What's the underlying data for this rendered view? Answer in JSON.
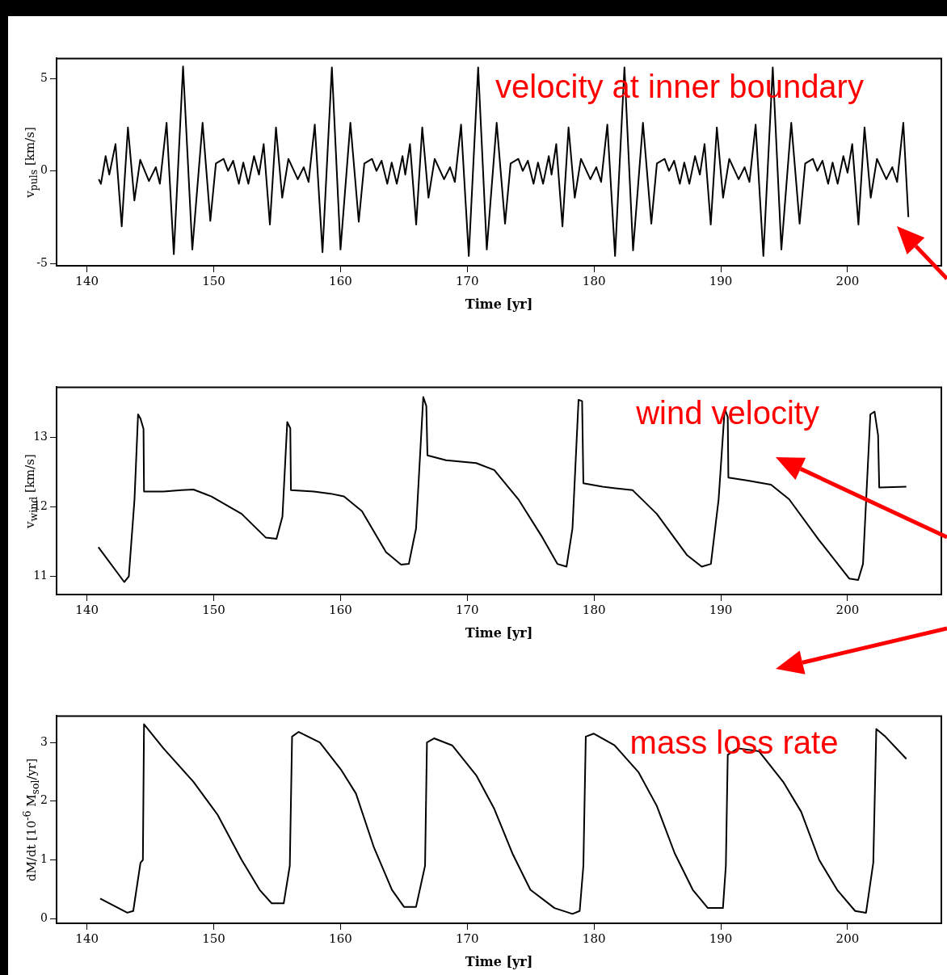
{
  "chart_data": [
    {
      "type": "line",
      "color": "#000000",
      "xlabel": "Time [yr]",
      "ylabel": "v$_{puls}$ [km/s]",
      "annotations": [
        "velocity at inner boundary"
      ],
      "xlim": [
        137.6,
        207.4
      ],
      "xticks": [
        140,
        150,
        160,
        170,
        180,
        190,
        200
      ],
      "ylim": [
        -5.13,
        6.08
      ],
      "yticks": [
        -5,
        0,
        5
      ],
      "x": [
        140.93,
        141.1,
        141.47,
        141.76,
        142.25,
        142.74,
        143.23,
        143.74,
        144.2,
        144.89,
        145.43,
        145.75,
        146.28,
        146.85,
        147.58,
        148.31,
        149.12,
        149.73,
        150.17,
        150.78,
        151.13,
        151.53,
        151.98,
        152.33,
        152.73,
        153.18,
        153.57,
        153.94,
        154.43,
        154.91,
        155.4,
        155.89,
        156.63,
        157.1,
        157.48,
        157.97,
        158.58,
        159.32,
        160.0,
        160.78,
        161.44,
        161.88,
        162.49,
        162.84,
        163.24,
        163.69,
        164.04,
        164.44,
        164.89,
        165.11,
        165.48,
        165.97,
        166.45,
        166.94,
        167.43,
        168.17,
        168.64,
        169.02,
        169.51,
        170.12,
        170.86,
        171.54,
        172.32,
        172.98,
        173.42,
        174.03,
        174.38,
        174.78,
        175.23,
        175.58,
        175.98,
        176.43,
        176.65,
        177.02,
        177.51,
        177.99,
        178.48,
        178.97,
        179.71,
        180.18,
        180.56,
        181.05,
        181.66,
        182.4,
        183.08,
        183.86,
        184.52,
        184.96,
        185.57,
        185.92,
        186.32,
        186.77,
        187.12,
        187.52,
        187.97,
        188.35,
        188.72,
        189.21,
        189.69,
        190.18,
        190.67,
        191.41,
        191.88,
        192.26,
        192.75,
        193.36,
        194.1,
        194.78,
        195.56,
        196.22,
        196.66,
        197.27,
        197.62,
        198.02,
        198.47,
        198.82,
        199.22,
        199.67,
        200.0,
        200.37,
        200.86,
        201.34,
        201.83,
        202.32,
        203.06,
        203.53,
        203.91,
        204.4,
        204.8
      ],
      "values": [
        -0.45,
        -0.7,
        0.8,
        -0.2,
        1.45,
        -3.0,
        2.35,
        -1.6,
        0.6,
        -0.55,
        0.2,
        -0.7,
        2.6,
        -4.5,
        5.65,
        -4.25,
        2.6,
        -2.7,
        0.4,
        0.65,
        0,
        0.55,
        -0.7,
        0.45,
        -0.7,
        0.8,
        -0.2,
        1.45,
        -2.9,
        2.35,
        -1.45,
        0.65,
        -0.45,
        0.2,
        -0.6,
        2.5,
        -4.4,
        5.6,
        -4.25,
        2.6,
        -2.75,
        0.4,
        0.65,
        0,
        0.55,
        -0.7,
        0.45,
        -0.7,
        0.8,
        -0.2,
        1.45,
        -2.9,
        2.35,
        -1.45,
        0.65,
        -0.45,
        0.2,
        -0.6,
        2.5,
        -4.6,
        5.6,
        -4.25,
        2.6,
        -2.85,
        0.4,
        0.65,
        0,
        0.55,
        -0.7,
        0.45,
        -0.7,
        0.8,
        -0.2,
        1.45,
        -3.0,
        2.35,
        -1.45,
        0.65,
        -0.45,
        0.2,
        -0.6,
        2.5,
        -4.6,
        5.6,
        -4.3,
        2.6,
        -2.85,
        0.4,
        0.65,
        0,
        0.55,
        -0.7,
        0.45,
        -0.7,
        0.8,
        -0.2,
        1.45,
        -2.9,
        2.35,
        -1.45,
        0.65,
        -0.45,
        0.2,
        -0.6,
        2.5,
        -4.6,
        5.6,
        -4.25,
        2.6,
        -2.85,
        0.4,
        0.65,
        0,
        0.55,
        -0.7,
        0.45,
        -0.7,
        0.8,
        -0.1,
        1.45,
        -2.9,
        2.35,
        -1.45,
        0.65,
        -0.45,
        0.2,
        -0.6,
        2.6,
        -2.5
      ]
    },
    {
      "type": "line",
      "color": "#000000",
      "xlabel": "Time [yr]",
      "ylabel": "v$_{wind}$ [km/s]",
      "annotations": [
        "wind velocity"
      ],
      "xlim": [
        137.6,
        207.4
      ],
      "xticks": [
        140,
        150,
        160,
        170,
        180,
        190,
        200
      ],
      "ylim": [
        10.74,
        13.72
      ],
      "yticks": [
        11,
        12,
        13
      ],
      "x": [
        140.9,
        142.94,
        143.3,
        143.75,
        144.03,
        144.22,
        144.46,
        144.5,
        146.03,
        147.45,
        148.4,
        149.82,
        152.2,
        154.1,
        154.95,
        155.42,
        155.8,
        156.04,
        156.09,
        157.9,
        159.22,
        160.27,
        161.69,
        163.59,
        164.78,
        165.39,
        165.96,
        166.53,
        166.77,
        166.86,
        168.33,
        170.7,
        172.13,
        174.03,
        175.93,
        177.11,
        177.83,
        178.3,
        178.78,
        179.06,
        179.16,
        180.67,
        183.05,
        184.95,
        187.32,
        188.5,
        189.22,
        189.83,
        190.31,
        190.55,
        190.6,
        192.06,
        193.96,
        195.39,
        197.76,
        200.13,
        200.84,
        201.22,
        201.8,
        202.13,
        202.41,
        202.5,
        204.64
      ],
      "values": [
        11.42,
        10.92,
        11.0,
        12.11,
        13.33,
        13.27,
        13.12,
        12.22,
        12.22,
        12.24,
        12.25,
        12.15,
        11.9,
        11.56,
        11.54,
        11.86,
        13.22,
        13.13,
        12.24,
        12.22,
        12.19,
        12.15,
        11.94,
        11.35,
        11.17,
        11.18,
        11.69,
        13.58,
        13.45,
        12.74,
        12.67,
        12.63,
        12.53,
        12.11,
        11.56,
        11.18,
        11.14,
        11.69,
        13.54,
        13.52,
        12.34,
        12.29,
        12.24,
        11.9,
        11.31,
        11.14,
        11.18,
        12.11,
        13.41,
        13.29,
        12.42,
        12.38,
        12.32,
        12.11,
        11.52,
        10.97,
        10.95,
        11.18,
        13.33,
        13.37,
        13.03,
        12.28,
        12.29
      ]
    },
    {
      "type": "line",
      "color": "#000000",
      "xlabel": "Time [yr]",
      "ylabel": "dM/dt [10$^{-6}$ M$_{sol}$/yr]",
      "annotations": [
        "mass loss rate"
      ],
      "xlim": [
        137.6,
        207.4
      ],
      "xticks": [
        140,
        150,
        160,
        170,
        180,
        190,
        200
      ],
      "ylim": [
        -0.08,
        3.45
      ],
      "yticks": [
        0,
        1,
        2,
        3
      ],
      "x": [
        141.04,
        143.18,
        143.65,
        144.22,
        144.41,
        144.5,
        146.03,
        148.4,
        150.3,
        152.2,
        153.62,
        154.57,
        155.52,
        156.0,
        156.18,
        156.7,
        158.37,
        160.03,
        161.22,
        162.64,
        164.06,
        165.01,
        165.96,
        166.67,
        166.82,
        167.38,
        168.81,
        170.71,
        172.13,
        173.56,
        174.98,
        176.88,
        178.3,
        178.87,
        179.16,
        179.35,
        179.97,
        181.62,
        183.52,
        184.95,
        186.37,
        187.79,
        188.98,
        190.17,
        190.4,
        190.55,
        191.35,
        193.02,
        194.92,
        196.34,
        197.76,
        199.18,
        200.6,
        201.46,
        202.03,
        202.27,
        202.98,
        204.64
      ],
      "values": [
        0.34,
        0.1,
        0.13,
        0.95,
        1.0,
        3.31,
        2.9,
        2.33,
        1.77,
        1.0,
        0.49,
        0.26,
        0.26,
        0.9,
        3.1,
        3.18,
        3.0,
        2.54,
        2.13,
        1.21,
        0.49,
        0.2,
        0.2,
        0.9,
        3.0,
        3.07,
        2.95,
        2.44,
        1.87,
        1.11,
        0.49,
        0.18,
        0.08,
        0.13,
        0.9,
        3.1,
        3.15,
        2.95,
        2.49,
        1.92,
        1.11,
        0.49,
        0.18,
        0.18,
        0.9,
        2.79,
        2.9,
        2.85,
        2.33,
        1.82,
        1.0,
        0.49,
        0.13,
        0.1,
        0.95,
        3.23,
        3.1,
        2.72
      ]
    }
  ]
}
